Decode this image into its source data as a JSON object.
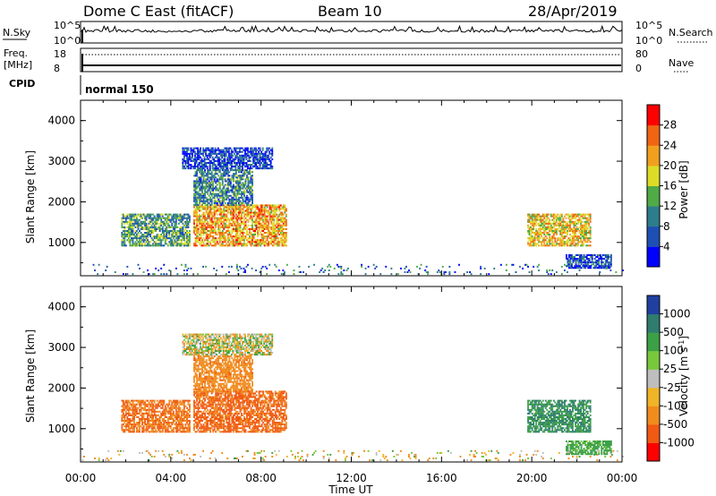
{
  "header": {
    "station": "Dome C East (fitACF)",
    "beam": "Beam 10",
    "date": "28/Apr/2019"
  },
  "noise_panel": {
    "left_label": "N.Sky",
    "right_label": "N.Search",
    "left_ticks": [
      "10^5",
      "10^0"
    ],
    "right_ticks": [
      "10^5",
      "10^0"
    ]
  },
  "freq_panel": {
    "left_label_1": "Freq.",
    "left_label_2": "[MHz]",
    "right_label": "Nave",
    "left_ticks": [
      "18",
      "8"
    ],
    "right_ticks": [
      "80",
      "0"
    ]
  },
  "cpid": {
    "label": "CPID",
    "mode": "normal 150"
  },
  "chart_data": [
    {
      "type": "heatmap",
      "title": "Power",
      "ylabel": "Slant Range [km]",
      "xlabel": "Time UT",
      "xlim": [
        "00:00",
        "24:00"
      ],
      "ylim": [
        180,
        4500
      ],
      "x_ticks": [
        "00:00",
        "04:00",
        "08:00",
        "12:00",
        "16:00",
        "20:00",
        "00:00"
      ],
      "y_ticks": [
        "1000",
        "2000",
        "3000",
        "4000"
      ],
      "colorbar": {
        "label": "Power [dB]",
        "ticks": [
          "4",
          "8",
          "12",
          "16",
          "20",
          "24",
          "28"
        ],
        "range": [
          0,
          32
        ],
        "colors": [
          "#0000ff",
          "#1e50b4",
          "#2d7d8c",
          "#50aa46",
          "#dcdc28",
          "#f0a01e",
          "#f06414",
          "#ff0000"
        ]
      },
      "regions": [
        {
          "t": [
            0.0,
            24.0
          ],
          "r": [
            200,
            450
          ],
          "value": 8,
          "note": "near-range scatter"
        },
        {
          "t": [
            1.8,
            4.8
          ],
          "r": [
            900,
            1700
          ],
          "value": 12
        },
        {
          "t": [
            5.0,
            9.1
          ],
          "r": [
            900,
            1900
          ],
          "value": 22
        },
        {
          "t": [
            5.0,
            7.6
          ],
          "r": [
            1900,
            2800
          ],
          "value": 10
        },
        {
          "t": [
            4.5,
            8.5
          ],
          "r": [
            2800,
            3300
          ],
          "value": 5
        },
        {
          "t": [
            19.8,
            22.6
          ],
          "r": [
            900,
            1700
          ],
          "value": 20
        },
        {
          "t": [
            21.5,
            23.5
          ],
          "r": [
            350,
            700
          ],
          "value": 6
        }
      ]
    },
    {
      "type": "heatmap",
      "title": "Velocity",
      "ylabel": "Slant Range [km]",
      "xlabel": "Time UT",
      "xlim": [
        "00:00",
        "24:00"
      ],
      "ylim": [
        180,
        4500
      ],
      "x_ticks": [
        "00:00",
        "04:00",
        "08:00",
        "12:00",
        "16:00",
        "20:00",
        "00:00"
      ],
      "y_ticks": [
        "1000",
        "2000",
        "3000",
        "4000"
      ],
      "colorbar": {
        "label": "Velocity [m s-1]",
        "ticks": [
          "1000",
          "500",
          "100",
          "25",
          "-25",
          "-100",
          "-500",
          "-1000"
        ],
        "colors": [
          "#2040a0",
          "#2e7d6e",
          "#3ca046",
          "#78c83c",
          "#bebebe",
          "#f0b428",
          "#f08c1e",
          "#f05a14",
          "#ff0000"
        ]
      },
      "regions": [
        {
          "t": [
            0.0,
            24.0
          ],
          "r": [
            200,
            450
          ],
          "value": -50
        },
        {
          "t": [
            1.8,
            4.8
          ],
          "r": [
            900,
            1700
          ],
          "value": -300
        },
        {
          "t": [
            5.0,
            9.1
          ],
          "r": [
            900,
            1900
          ],
          "value": -350
        },
        {
          "t": [
            5.0,
            7.6
          ],
          "r": [
            1900,
            2800
          ],
          "value": -200
        },
        {
          "t": [
            4.5,
            8.5
          ],
          "r": [
            2800,
            3300
          ],
          "value": 0
        },
        {
          "t": [
            19.8,
            22.6
          ],
          "r": [
            900,
            1700
          ],
          "value": 300
        },
        {
          "t": [
            21.5,
            23.5
          ],
          "r": [
            350,
            700
          ],
          "value": 150
        }
      ]
    }
  ]
}
